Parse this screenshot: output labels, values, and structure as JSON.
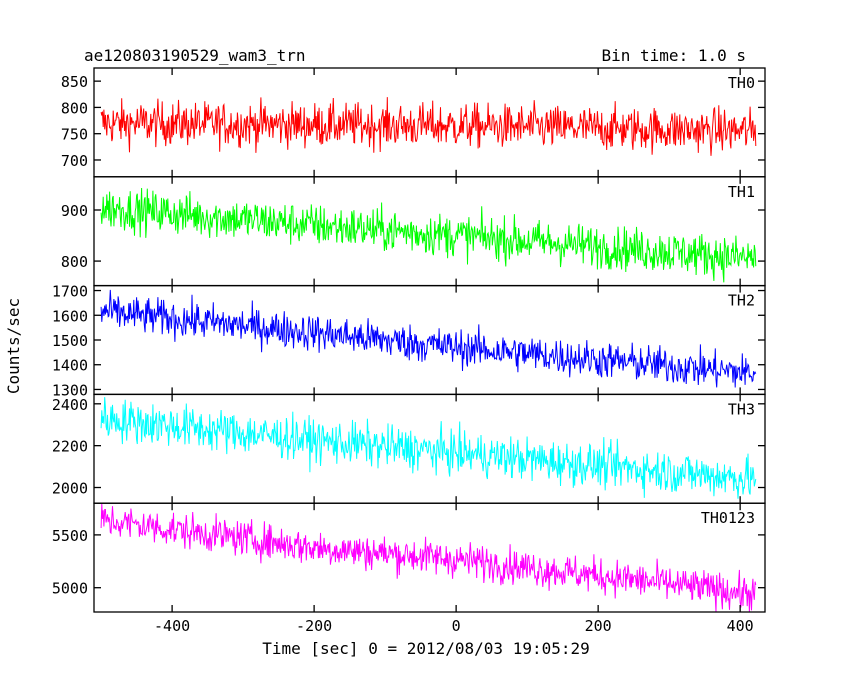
{
  "chart_data": {
    "type": "line",
    "title": "ae120803190529_wam3_trn",
    "subtitle": "Bin time: 1.0 s",
    "xlabel": "Time [sec] 0 = 2012/08/03 19:05:29",
    "ylabel": "Counts/sec",
    "xlim": [
      -510,
      435
    ],
    "x_range": [
      -500,
      422
    ],
    "x_ticks": [
      -400,
      -200,
      0,
      200,
      400
    ],
    "panels": [
      {
        "name": "TH0",
        "color": "#ff0000",
        "ylim": [
          668,
          875
        ],
        "y_ticks": [
          700,
          750,
          800,
          850
        ],
        "trend": [
          [
            -500,
            770
          ],
          [
            0,
            765
          ],
          [
            422,
            755
          ]
        ],
        "noise_amplitude": 45
      },
      {
        "name": "TH1",
        "color": "#00ff00",
        "ylim": [
          752,
          965
        ],
        "y_ticks": [
          800,
          900
        ],
        "trend": [
          [
            -500,
            905
          ],
          [
            -200,
            870
          ],
          [
            0,
            850
          ],
          [
            422,
            805
          ]
        ],
        "noise_amplitude": 45
      },
      {
        "name": "TH2",
        "color": "#0000ff",
        "ylim": [
          1280,
          1720
        ],
        "y_ticks": [
          1300,
          1400,
          1500,
          1600,
          1700
        ],
        "trend": [
          [
            -500,
            1615
          ],
          [
            -200,
            1530
          ],
          [
            0,
            1470
          ],
          [
            422,
            1365
          ]
        ],
        "noise_amplitude": 80
      },
      {
        "name": "TH3",
        "color": "#00ffff",
        "ylim": [
          1925,
          2445
        ],
        "y_ticks": [
          2000,
          2200,
          2400
        ],
        "trend": [
          [
            -500,
            2330
          ],
          [
            -200,
            2225
          ],
          [
            0,
            2165
          ],
          [
            422,
            2040
          ]
        ],
        "noise_amplitude": 110
      },
      {
        "name": "TH0123",
        "color": "#ff00ff",
        "ylim": [
          4770,
          5800
        ],
        "y_ticks": [
          5000,
          5500
        ],
        "trend": [
          [
            -500,
            5640
          ],
          [
            -200,
            5380
          ],
          [
            0,
            5270
          ],
          [
            422,
            4940
          ]
        ],
        "noise_amplitude": 180
      }
    ]
  }
}
